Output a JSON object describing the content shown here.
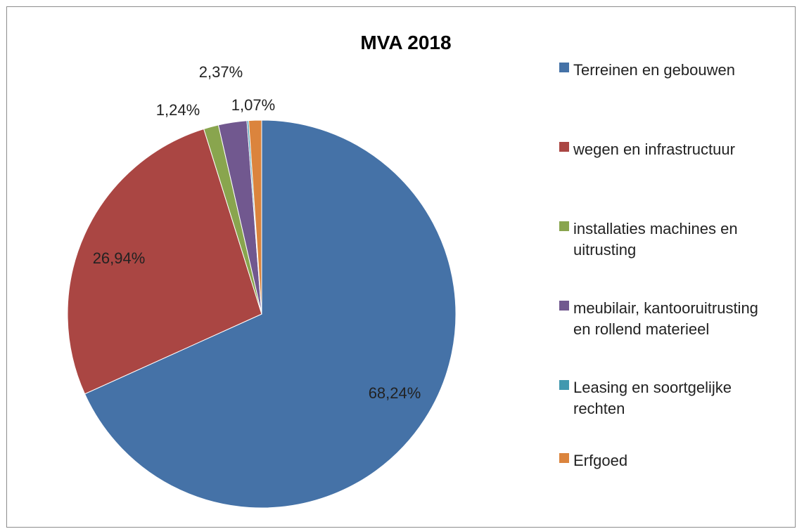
{
  "chart_data": {
    "type": "pie",
    "title": "MVA 2018",
    "slices": [
      {
        "label": "Terreinen en gebouwen",
        "value": 68.24,
        "color": "#4572a7",
        "data_label": "68,24%"
      },
      {
        "label": "wegen en infrastructuur",
        "value": 26.94,
        "color": "#aa4643",
        "data_label": "26,94%"
      },
      {
        "label": "installaties machines en uitrusting",
        "value": 1.24,
        "color": "#89a54e",
        "data_label": "1,24%"
      },
      {
        "label": "meubilair, kantooruitrusting en rollend materieel",
        "value": 2.37,
        "color": "#71588f",
        "data_label": "2,37%"
      },
      {
        "label": "Leasing en soortgelijke rechten",
        "value": 0.14,
        "color": "#4198af",
        "data_label": ""
      },
      {
        "label": "Erfgoed",
        "value": 1.07,
        "color": "#db843d",
        "data_label": "1,07%"
      }
    ],
    "legend": {
      "position": "right",
      "entries": [
        [
          "Terreinen en gebouwen"
        ],
        [
          "wegen en infrastructuur"
        ],
        [
          "installaties machines en",
          "uitrusting"
        ],
        [
          "meubilair, kantooruitrusting",
          "en rollend materieel"
        ],
        [
          "Leasing en soortgelijke",
          "rechten"
        ],
        [
          "Erfgoed"
        ]
      ]
    }
  }
}
